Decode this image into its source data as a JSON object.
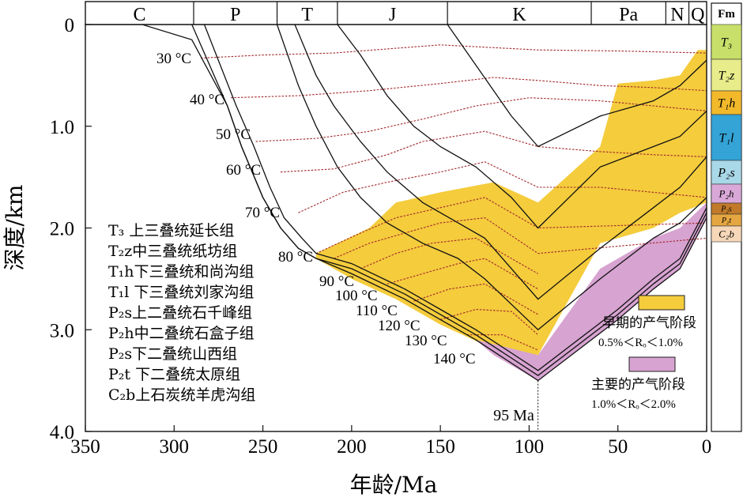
{
  "chart_data": {
    "type": "line",
    "title": "",
    "xlabel": "年龄/Ma",
    "ylabel": "深度/km",
    "xlim": [
      350,
      0
    ],
    "ylim": [
      0,
      4.0
    ],
    "x_reversed": true,
    "y_reversed": true,
    "x_ticks": [
      350,
      300,
      250,
      200,
      150,
      100,
      50,
      0
    ],
    "x_tick_labels": [
      "350",
      "300",
      "250",
      "200",
      "150",
      "100",
      "50",
      "0"
    ],
    "y_ticks": [
      0,
      1.0,
      2.0,
      3.0,
      4.0
    ],
    "y_tick_labels": [
      "0",
      "1.0",
      "2.0",
      "3.0",
      "4.0"
    ],
    "periods": [
      {
        "label": "C",
        "start": 350,
        "end": 289
      },
      {
        "label": "P",
        "start": 289,
        "end": 242
      },
      {
        "label": "T",
        "start": 242,
        "end": 208
      },
      {
        "label": "J",
        "start": 208,
        "end": 146
      },
      {
        "label": "K",
        "start": 146,
        "end": 65
      },
      {
        "label": "Pa",
        "start": 65,
        "end": 23
      },
      {
        "label": "N",
        "start": 23,
        "end": 10
      },
      {
        "label": "Q",
        "start": 10,
        "end": 0
      }
    ],
    "burial_curves": [
      [
        [
          350,
          0
        ],
        [
          318,
          0
        ],
        [
          290,
          0.15
        ],
        [
          270,
          0.8
        ],
        [
          262,
          1.2
        ],
        [
          250,
          1.7
        ],
        [
          240,
          2.0
        ],
        [
          230,
          2.2
        ],
        [
          220,
          2.3
        ],
        [
          200,
          2.45
        ],
        [
          170,
          2.7
        ],
        [
          150,
          2.9
        ],
        [
          130,
          3.1
        ],
        [
          95,
          3.5
        ],
        [
          50,
          2.9
        ],
        [
          30,
          2.6
        ],
        [
          15,
          2.4
        ],
        [
          0,
          1.9
        ]
      ],
      [
        [
          290,
          0
        ],
        [
          270,
          0.8
        ],
        [
          262,
          1.2
        ],
        [
          250,
          1.7
        ],
        [
          240,
          2.0
        ],
        [
          230,
          2.2
        ],
        [
          220,
          2.3
        ],
        [
          200,
          2.4
        ],
        [
          170,
          2.65
        ],
        [
          150,
          2.85
        ],
        [
          130,
          3.05
        ],
        [
          95,
          3.45
        ],
        [
          50,
          2.85
        ],
        [
          30,
          2.55
        ],
        [
          15,
          2.35
        ],
        [
          0,
          1.85
        ]
      ],
      [
        [
          283,
          0
        ],
        [
          265,
          0.8
        ],
        [
          255,
          1.2
        ],
        [
          246,
          1.6
        ],
        [
          238,
          1.9
        ],
        [
          228,
          2.1
        ],
        [
          220,
          2.25
        ],
        [
          200,
          2.35
        ],
        [
          170,
          2.6
        ],
        [
          150,
          2.8
        ],
        [
          130,
          3.0
        ],
        [
          95,
          3.4
        ],
        [
          50,
          2.8
        ],
        [
          30,
          2.5
        ],
        [
          15,
          2.3
        ],
        [
          0,
          1.8
        ]
      ],
      [
        [
          242,
          0
        ],
        [
          230,
          0.6
        ],
        [
          220,
          1.0
        ],
        [
          208,
          1.4
        ],
        [
          195,
          1.7
        ],
        [
          180,
          1.95
        ],
        [
          160,
          2.15
        ],
        [
          140,
          2.3
        ],
        [
          125,
          2.5
        ],
        [
          95,
          3.0
        ],
        [
          60,
          2.5
        ],
        [
          30,
          2.1
        ],
        [
          15,
          1.95
        ],
        [
          0,
          1.7
        ]
      ],
      [
        [
          232,
          0
        ],
        [
          220,
          0.5
        ],
        [
          210,
          0.8
        ],
        [
          195,
          1.15
        ],
        [
          180,
          1.45
        ],
        [
          160,
          1.75
        ],
        [
          140,
          1.95
        ],
        [
          125,
          2.1
        ],
        [
          95,
          2.7
        ],
        [
          60,
          2.2
        ],
        [
          30,
          1.8
        ],
        [
          15,
          1.6
        ],
        [
          0,
          1.3
        ]
      ],
      [
        [
          208,
          0
        ],
        [
          195,
          0.3
        ],
        [
          180,
          0.7
        ],
        [
          165,
          1.0
        ],
        [
          150,
          1.2
        ],
        [
          130,
          1.4
        ],
        [
          110,
          1.7
        ],
        [
          95,
          2.0
        ],
        [
          60,
          1.4
        ],
        [
          30,
          1.2
        ],
        [
          15,
          1.1
        ],
        [
          0,
          0.85
        ]
      ],
      [
        [
          146,
          0
        ],
        [
          130,
          0.4
        ],
        [
          110,
          0.9
        ],
        [
          95,
          1.2
        ],
        [
          60,
          0.9
        ],
        [
          30,
          0.75
        ],
        [
          15,
          0.6
        ],
        [
          0,
          0.35
        ]
      ]
    ],
    "isotherms": [
      {
        "label": "30 °C",
        "temp": 30
      },
      {
        "label": "40 °C",
        "temp": 40
      },
      {
        "label": "50 °C",
        "temp": 50
      },
      {
        "label": "60 °C",
        "temp": 60
      },
      {
        "label": "70 °C",
        "temp": 70
      },
      {
        "label": "80 °C",
        "temp": 80
      },
      {
        "label": "90 °C",
        "temp": 90
      },
      {
        "label": "100 °C",
        "temp": 100
      },
      {
        "label": "110 °C",
        "temp": 110
      },
      {
        "label": "120 °C",
        "temp": 120
      },
      {
        "label": "130 °C",
        "temp": 130
      },
      {
        "label": "140 °C",
        "temp": 140
      }
    ],
    "isotherm_lines": [
      [
        [
          285,
          0.33
        ],
        [
          250,
          0.3
        ],
        [
          210,
          0.28
        ],
        [
          150,
          0.2
        ],
        [
          95,
          0.25
        ],
        [
          50,
          0.26
        ],
        [
          0,
          0.28
        ]
      ],
      [
        [
          268,
          0.72
        ],
        [
          230,
          0.7
        ],
        [
          190,
          0.65
        ],
        [
          150,
          0.58
        ],
        [
          120,
          0.52
        ],
        [
          95,
          0.55
        ],
        [
          60,
          0.6
        ],
        [
          30,
          0.62
        ],
        [
          0,
          0.65
        ]
      ],
      [
        [
          254,
          1.15
        ],
        [
          220,
          1.12
        ],
        [
          190,
          1.05
        ],
        [
          160,
          0.93
        ],
        [
          130,
          0.8
        ],
        [
          100,
          0.72
        ],
        [
          60,
          0.75
        ],
        [
          30,
          0.8
        ],
        [
          0,
          0.85
        ]
      ],
      [
        [
          240,
          1.45
        ],
        [
          210,
          1.42
        ],
        [
          180,
          1.28
        ],
        [
          160,
          1.15
        ],
        [
          125,
          1.05
        ],
        [
          95,
          1.2
        ],
        [
          60,
          1.25
        ],
        [
          30,
          1.28
        ],
        [
          0,
          1.3
        ]
      ],
      [
        [
          230,
          1.85
        ],
        [
          205,
          1.65
        ],
        [
          180,
          1.55
        ],
        [
          150,
          1.45
        ],
        [
          125,
          1.35
        ],
        [
          95,
          1.6
        ],
        [
          60,
          1.6
        ],
        [
          30,
          1.65
        ],
        [
          0,
          1.7
        ]
      ],
      [
        [
          220,
          2.25
        ],
        [
          195,
          2.05
        ],
        [
          175,
          1.9
        ],
        [
          150,
          1.8
        ],
        [
          125,
          1.7
        ],
        [
          95,
          2.0
        ],
        [
          0,
          1.95
        ]
      ],
      [
        [
          210,
          2.3
        ],
        [
          190,
          2.15
        ],
        [
          170,
          2.05
        ],
        [
          150,
          1.95
        ],
        [
          125,
          1.9
        ],
        [
          95,
          2.25
        ],
        [
          0,
          2.1
        ]
      ],
      [
        [
          195,
          2.4
        ],
        [
          175,
          2.25
        ],
        [
          155,
          2.15
        ],
        [
          130,
          2.1
        ],
        [
          95,
          2.45
        ]
      ],
      [
        [
          180,
          2.55
        ],
        [
          160,
          2.45
        ],
        [
          140,
          2.35
        ],
        [
          125,
          2.3
        ],
        [
          95,
          2.6
        ]
      ],
      [
        [
          165,
          2.72
        ],
        [
          145,
          2.6
        ],
        [
          125,
          2.55
        ],
        [
          95,
          2.85
        ]
      ],
      [
        [
          150,
          2.9
        ],
        [
          130,
          2.8
        ],
        [
          110,
          2.82
        ],
        [
          95,
          3.05
        ]
      ],
      [
        [
          135,
          3.05
        ],
        [
          115,
          3.05
        ],
        [
          95,
          3.2
        ]
      ]
    ],
    "early_gas_zone": [
      [
        220,
        2.25
      ],
      [
        190,
        2.0
      ],
      [
        175,
        1.75
      ],
      [
        150,
        1.65
      ],
      [
        120,
        1.55
      ],
      [
        95,
        1.75
      ],
      [
        60,
        1.2
      ],
      [
        50,
        0.58
      ],
      [
        30,
        0.55
      ],
      [
        15,
        0.5
      ],
      [
        5,
        0.25
      ],
      [
        0,
        0.25
      ],
      [
        0,
        1.75
      ],
      [
        15,
        1.85
      ],
      [
        30,
        2.0
      ],
      [
        60,
        2.15
      ],
      [
        95,
        3.25
      ],
      [
        125,
        3.15
      ],
      [
        150,
        2.95
      ],
      [
        175,
        2.7
      ],
      [
        200,
        2.5
      ],
      [
        220,
        2.3
      ]
    ],
    "main_gas_zone": [
      [
        130,
        3.1
      ],
      [
        95,
        3.25
      ],
      [
        60,
        2.4
      ],
      [
        30,
        2.1
      ],
      [
        15,
        2.0
      ],
      [
        0,
        1.75
      ],
      [
        0,
        1.9
      ],
      [
        15,
        2.4
      ],
      [
        30,
        2.6
      ],
      [
        50,
        2.9
      ],
      [
        95,
        3.5
      ],
      [
        120,
        3.25
      ]
    ],
    "marker_age": 95,
    "marker_label": "95 Ma",
    "fm_header": "Fm",
    "fm_column": [
      {
        "label": "T₃",
        "color": "#c8e06a"
      },
      {
        "label": "T₂z",
        "color": "#e8ec8a"
      },
      {
        "label": "T₁h",
        "color": "#f2b92b"
      },
      {
        "label": "T₁l",
        "color": "#34a3d6"
      },
      {
        "label": "P₂s",
        "color": "#a9d8e8"
      },
      {
        "label": "P₂h",
        "color": "#d9a8d8"
      },
      {
        "label": "P₂s",
        "color": "#c07a2a"
      },
      {
        "label": "P₂t",
        "color": "#e4a640"
      },
      {
        "label": "C₂b",
        "color": "#f6d7b8"
      }
    ],
    "formation_legend": [
      "T₃ 上三叠统延长组",
      "T₂z中三叠统纸坊组",
      "T₁h下三叠统和尚沟组",
      "T₁l 下三叠统刘家沟组",
      "P₂s上二叠统石千峰组",
      "P₂h中二叠统石盒子组",
      "P₂s下二叠统山西组",
      "P₂t 下二叠统太原组",
      "C₂b上石炭统羊虎沟组"
    ],
    "gas_legend": [
      {
        "label": "早期的产气阶段",
        "range": "0.5%＜Rₒ＜1.0%",
        "color": "#f4cc3c"
      },
      {
        "label": "主要的产气阶段",
        "range": "1.0%＜Rₒ＜2.0%",
        "color": "#d7a3d1"
      }
    ]
  }
}
